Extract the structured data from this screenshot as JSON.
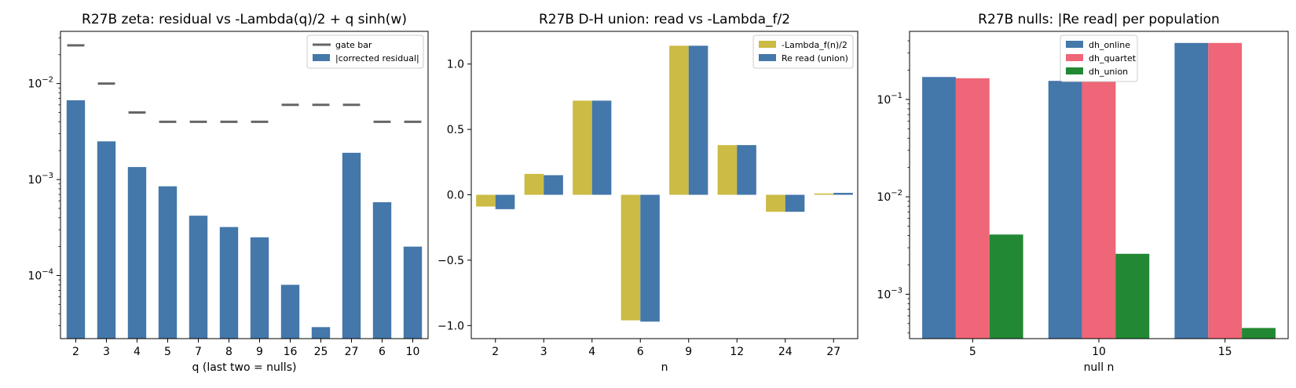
{
  "figure": {
    "colors": {
      "blue": "#4477AA",
      "yellow": "#CCBB44",
      "pink": "#EE6677",
      "green": "#228833",
      "gate": "#666666"
    }
  },
  "chart_data": [
    {
      "type": "bar",
      "title": "R27B zeta: residual vs -Lambda(q)/2 + q sinh(w)",
      "xlabel": "q (last two = nulls)",
      "ylabel": "",
      "yscale": "log",
      "ylim": [
        2.2e-05,
        0.035
      ],
      "yticks": [
        {
          "value": 0.0001,
          "base": "10",
          "exp": "−4"
        },
        {
          "value": 0.001,
          "base": "10",
          "exp": "−3"
        },
        {
          "value": 0.01,
          "base": "10",
          "exp": "−2"
        }
      ],
      "categories": [
        "2",
        "3",
        "4",
        "5",
        "7",
        "8",
        "9",
        "16",
        "25",
        "27",
        "6",
        "10"
      ],
      "series": [
        {
          "name": "|corrected residual|",
          "values": [
            0.0067,
            0.0025,
            0.00135,
            0.00085,
            0.00042,
            0.00032,
            0.00025,
            8e-05,
            2.9e-05,
            0.0019,
            0.00058,
            0.0002
          ],
          "color": "#4477AA"
        },
        {
          "name": "gate bar",
          "values": [
            0.025,
            0.01,
            0.005,
            0.004,
            0.004,
            0.004,
            0.004,
            0.006,
            0.006,
            0.006,
            0.004,
            0.004
          ],
          "color": "#666666",
          "style": "hline"
        }
      ],
      "legend": {
        "position": "upper-right",
        "entries": [
          "gate bar",
          "|corrected residual|"
        ]
      }
    },
    {
      "type": "bar",
      "title": "R27B D-H union: read vs -Lambda_f/2",
      "xlabel": "n",
      "ylabel": "",
      "yscale": "linear",
      "ylim": [
        -1.1,
        1.25
      ],
      "yticks": [
        {
          "value": -1.0,
          "label": "−1.0"
        },
        {
          "value": -0.5,
          "label": "−0.5"
        },
        {
          "value": 0.0,
          "label": "0.0"
        },
        {
          "value": 0.5,
          "label": "0.5"
        },
        {
          "value": 1.0,
          "label": "1.0"
        }
      ],
      "categories": [
        "2",
        "3",
        "4",
        "6",
        "9",
        "12",
        "24",
        "27"
      ],
      "series": [
        {
          "name": "-Lambda_f(n)/2",
          "values": [
            -0.09,
            0.16,
            0.72,
            -0.96,
            1.14,
            0.38,
            -0.13,
            0.01
          ],
          "color": "#CCBB44"
        },
        {
          "name": "Re read (union)",
          "values": [
            -0.11,
            0.15,
            0.72,
            -0.97,
            1.14,
            0.38,
            -0.13,
            0.015
          ],
          "color": "#4477AA"
        }
      ],
      "legend": {
        "position": "upper-right",
        "entries": [
          "-Lambda_f(n)/2",
          "Re read (union)"
        ]
      }
    },
    {
      "type": "bar",
      "title": "R27B nulls: |Re read| per population",
      "xlabel": "null n",
      "ylabel": "",
      "yscale": "log",
      "ylim": [
        0.00035,
        0.5
      ],
      "yticks": [
        {
          "value": 0.001,
          "base": "10",
          "exp": "−3"
        },
        {
          "value": 0.01,
          "base": "10",
          "exp": "−2"
        },
        {
          "value": 0.1,
          "base": "10",
          "exp": "−1"
        }
      ],
      "categories": [
        "5",
        "10",
        "15"
      ],
      "series": [
        {
          "name": "dh_online",
          "values": [
            0.17,
            0.155,
            0.38
          ],
          "color": "#4477AA"
        },
        {
          "name": "dh_quartet",
          "values": [
            0.165,
            0.16,
            0.38
          ],
          "color": "#EE6677"
        },
        {
          "name": "dh_union",
          "values": [
            0.0041,
            0.0026,
            0.00045
          ],
          "color": "#228833"
        }
      ],
      "legend": {
        "position": "upper-center",
        "entries": [
          "dh_online",
          "dh_quartet",
          "dh_union"
        ]
      }
    }
  ]
}
